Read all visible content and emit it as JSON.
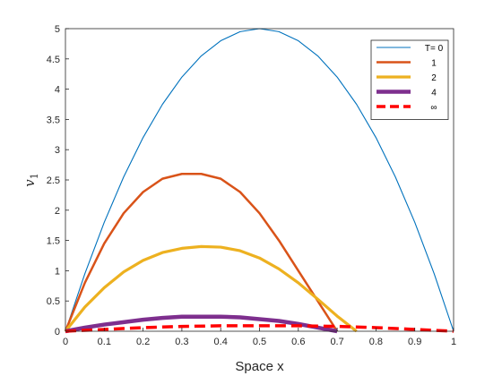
{
  "chart_data": {
    "type": "line",
    "title": "",
    "xlabel": "Space x",
    "ylabel": "v",
    "ylabel_subscript": "1",
    "xlim": [
      0,
      1
    ],
    "ylim": [
      0,
      5
    ],
    "xticks": [
      "0",
      "0.1",
      "0.2",
      "0.3",
      "0.4",
      "0.5",
      "0.6",
      "0.7",
      "0.8",
      "0.9",
      "1"
    ],
    "yticks": [
      "0",
      "0.5",
      "1",
      "1.5",
      "2",
      "2.5",
      "3",
      "3.5",
      "4",
      "4.5",
      "5"
    ],
    "grid": false,
    "legend_position": "top-right",
    "series": [
      {
        "name": "T= 0",
        "color": "#0072BD",
        "style": "solid",
        "x": [
          0,
          0.05,
          0.1,
          0.15,
          0.2,
          0.25,
          0.3,
          0.35,
          0.4,
          0.45,
          0.5,
          0.55,
          0.6,
          0.65,
          0.7,
          0.75,
          0.8,
          0.85,
          0.9,
          0.95,
          1
        ],
        "y": [
          0,
          0.95,
          1.8,
          2.55,
          3.2,
          3.75,
          4.2,
          4.55,
          4.8,
          4.95,
          5,
          4.95,
          4.8,
          4.55,
          4.2,
          3.75,
          3.2,
          2.55,
          1.8,
          0.95,
          0
        ]
      },
      {
        "name": "1",
        "color": "#D95319",
        "style": "solid",
        "x": [
          0,
          0.05,
          0.1,
          0.15,
          0.2,
          0.25,
          0.3,
          0.35,
          0.4,
          0.45,
          0.5,
          0.55,
          0.6,
          0.65,
          0.7
        ],
        "y": [
          0,
          0.8,
          1.45,
          1.95,
          2.3,
          2.52,
          2.6,
          2.6,
          2.52,
          2.3,
          1.95,
          1.5,
          1.0,
          0.5,
          0
        ]
      },
      {
        "name": "2",
        "color": "#EDB120",
        "style": "solid",
        "x": [
          0,
          0.05,
          0.1,
          0.15,
          0.2,
          0.25,
          0.3,
          0.35,
          0.4,
          0.45,
          0.5,
          0.55,
          0.6,
          0.65,
          0.7,
          0.75
        ],
        "y": [
          0,
          0.4,
          0.72,
          0.98,
          1.17,
          1.3,
          1.37,
          1.4,
          1.39,
          1.33,
          1.21,
          1.03,
          0.8,
          0.53,
          0.25,
          0
        ]
      },
      {
        "name": "4",
        "color": "#7E2F8E",
        "style": "solid",
        "x": [
          0,
          0.05,
          0.1,
          0.15,
          0.2,
          0.25,
          0.3,
          0.35,
          0.4,
          0.45,
          0.5,
          0.55,
          0.6,
          0.65,
          0.7
        ],
        "y": [
          0,
          0.06,
          0.11,
          0.15,
          0.19,
          0.22,
          0.24,
          0.24,
          0.24,
          0.23,
          0.2,
          0.17,
          0.12,
          0.06,
          0
        ]
      },
      {
        "name": "∞",
        "color": "#FF0000",
        "style": "dashed",
        "x": [
          0,
          0.1,
          0.2,
          0.3,
          0.4,
          0.5,
          0.6,
          0.7,
          0.8,
          0.9,
          1
        ],
        "y": [
          0,
          0.03,
          0.06,
          0.08,
          0.09,
          0.09,
          0.09,
          0.08,
          0.06,
          0.03,
          0
        ]
      }
    ]
  }
}
